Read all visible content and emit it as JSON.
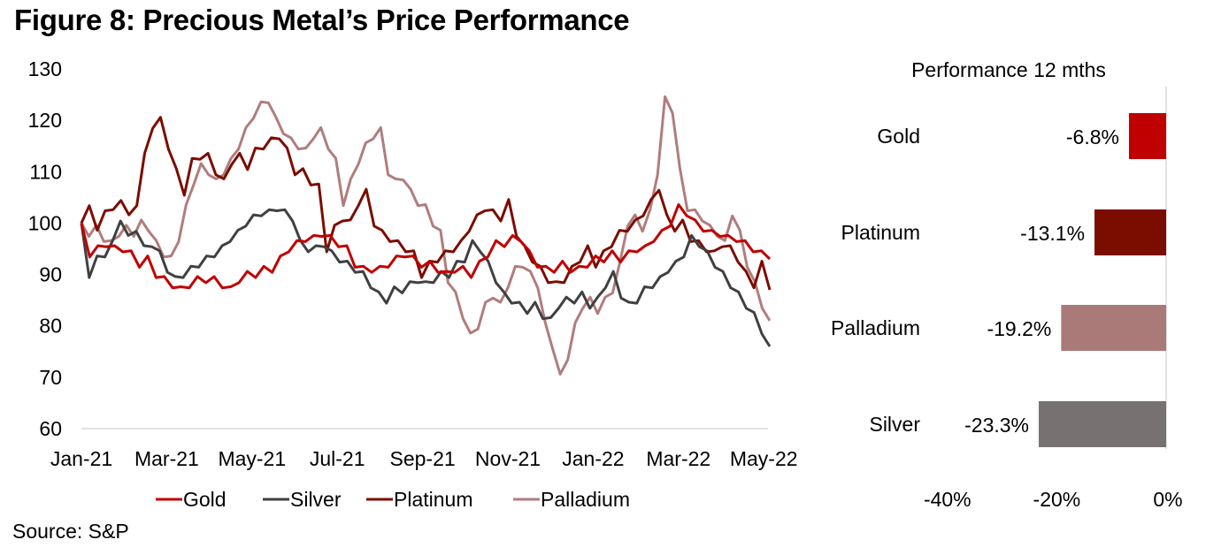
{
  "title": "Figure 8: Precious Metal’s Price Performance",
  "source": "Source: S&P",
  "chart_data": [
    {
      "type": "line",
      "title": "",
      "xlabel": "",
      "ylabel": "",
      "ylim": [
        60,
        130
      ],
      "yticks": [
        "130",
        "120",
        "110",
        "100",
        "90",
        "80",
        "70",
        "60"
      ],
      "ytick_values": [
        130,
        120,
        110,
        100,
        90,
        80,
        70,
        60
      ],
      "xticks": [
        "Jan-21",
        "Mar-21",
        "May-21",
        "Jul-21",
        "Sep-21",
        "Nov-21",
        "Jan-22",
        "Mar-22",
        "May-22"
      ],
      "x_range_months": [
        0,
        16.3
      ],
      "xtick_months": [
        0,
        2,
        4,
        6,
        8,
        10,
        12,
        14,
        16
      ],
      "x_unit": "weeks since start of Jan-21",
      "grid": false,
      "legend_position": "bottom",
      "series": [
        {
          "name": "Gold",
          "color": "#c00000",
          "values": [
            100,
            94,
            95,
            96,
            95,
            95,
            94,
            92,
            93,
            90,
            89,
            88,
            87,
            88,
            89,
            89,
            89,
            88,
            87,
            89,
            90,
            90,
            91,
            91,
            93,
            95,
            96,
            97,
            97,
            98,
            97,
            96,
            95,
            92,
            91,
            91,
            91,
            92,
            93,
            94,
            93,
            92,
            92,
            91,
            90,
            91,
            91,
            90,
            92,
            94,
            96,
            96,
            97,
            97,
            94,
            92,
            91,
            91,
            92,
            91,
            91,
            92,
            93,
            93,
            94,
            93,
            94,
            95,
            95,
            97,
            98,
            100,
            103,
            102,
            100,
            99,
            98,
            98,
            97,
            97,
            96,
            95,
            94,
            93
          ]
        },
        {
          "name": "Silver",
          "color": "#404040",
          "values": [
            100,
            90,
            93,
            94,
            96,
            101,
            97,
            99,
            95,
            96,
            94,
            91,
            89,
            90,
            91,
            92,
            93,
            94,
            95,
            97,
            98,
            100,
            101,
            102,
            102,
            103,
            102,
            101,
            96,
            95,
            95,
            96,
            94,
            93,
            92,
            91,
            90,
            88,
            86,
            85,
            87,
            87,
            88,
            89,
            88,
            89,
            90,
            90,
            92,
            93,
            96,
            95,
            92,
            89,
            86,
            85,
            84,
            83,
            84,
            82,
            81,
            84,
            85,
            85,
            86,
            84,
            85,
            88,
            90,
            86,
            84,
            85,
            87,
            88,
            89,
            91,
            92,
            94,
            97,
            96,
            94,
            92,
            90,
            88,
            86,
            84,
            82,
            79,
            76
          ]
        },
        {
          "name": "Platinum",
          "color": "#7b0c00",
          "values": [
            100,
            104,
            98,
            103,
            102,
            105,
            101,
            104,
            113,
            119,
            120,
            115,
            110,
            106,
            112,
            113,
            113,
            110,
            108,
            112,
            113,
            111,
            114,
            115,
            116,
            117,
            114,
            110,
            110,
            108,
            107,
            95,
            99,
            101,
            100,
            104,
            106,
            100,
            98,
            97,
            96,
            95,
            94,
            90,
            92,
            93,
            94,
            95,
            96,
            99,
            101,
            103,
            102,
            101,
            104,
            98,
            95,
            93,
            91,
            89,
            88,
            89,
            91,
            93,
            95,
            92,
            94,
            96,
            98,
            99,
            100,
            102,
            104,
            107,
            101,
            99,
            100,
            97,
            96,
            95,
            94,
            96,
            95,
            93,
            90,
            88,
            92,
            87
          ]
        },
        {
          "name": "Palladium",
          "color": "#b07d7d",
          "values": [
            100,
            98,
            99,
            97,
            96,
            98,
            99,
            98,
            100,
            99,
            96,
            94,
            93,
            97,
            103,
            108,
            111,
            110,
            108,
            110,
            112,
            115,
            118,
            121,
            123,
            124,
            120,
            118,
            116,
            115,
            114,
            117,
            118,
            115,
            112,
            104,
            108,
            112,
            115,
            117,
            118,
            110,
            108,
            109,
            106,
            104,
            103,
            100,
            98,
            89,
            86,
            82,
            78,
            80,
            84,
            86,
            84,
            88,
            91,
            92,
            90,
            88,
            80,
            76,
            70,
            74,
            80,
            84,
            85,
            83,
            85,
            87,
            92,
            100,
            101,
            99,
            102,
            110,
            124,
            122,
            110,
            103,
            102,
            101,
            99,
            98,
            96,
            102,
            98,
            92,
            88,
            84,
            81
          ]
        }
      ]
    },
    {
      "type": "bar",
      "orientation": "horizontal",
      "title": "Performance 12 mths",
      "categories": [
        "Gold",
        "Platinum",
        "Palladium",
        "Silver"
      ],
      "values": [
        -6.8,
        -13.1,
        -19.2,
        -23.3
      ],
      "data_labels": [
        "-6.8%",
        "-13.1%",
        "-19.2%",
        "-23.3%"
      ],
      "colors": [
        "#c00000",
        "#7b0c00",
        "#aa7a78",
        "#777171"
      ],
      "xlim": [
        -40,
        0
      ],
      "xticks": [
        "-40%",
        "-20%",
        "0%"
      ],
      "xtick_values": [
        -40,
        -20,
        0
      ],
      "grid": false
    }
  ]
}
